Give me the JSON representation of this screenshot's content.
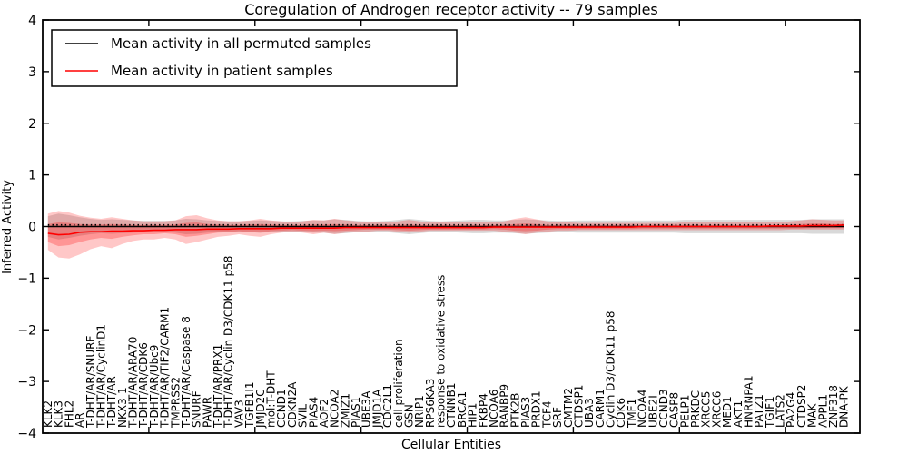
{
  "window": {
    "background": "#ffffff"
  },
  "chart_data": {
    "type": "line",
    "title": "Coregulation of Androgen receptor activity -- 79 samples",
    "xlabel": "Cellular Entities",
    "ylabel": "Inferred Activity",
    "ylim": [
      -4,
      4
    ],
    "yticks": [
      -4,
      -3,
      -2,
      -1,
      0,
      1,
      2,
      3,
      4
    ],
    "ytick_labels": [
      "−4",
      "−3",
      "−2",
      "−1",
      "0",
      "1",
      "2",
      "3",
      "4"
    ],
    "x_major_ticks": [
      10,
      20,
      30,
      40,
      50,
      60,
      70
    ],
    "grid": false,
    "legend": {
      "position": "upper left",
      "entries": [
        {
          "label": "Mean activity in all permuted samples",
          "color": "#000000"
        },
        {
          "label": "Mean activity in patient samples",
          "color": "#ff0000"
        }
      ]
    },
    "zero_line": {
      "y": 0,
      "style": "dotted",
      "color": "#000000"
    },
    "colors": {
      "permuted_line": "#000000",
      "patient_line": "#ff0000",
      "permuted_band": "#808080",
      "patient_band": "#ff0000",
      "axis": "#000000"
    },
    "categories": [
      "KLK2",
      "KLK3",
      "FHL2",
      "AR",
      "T-DHT/AR/SNURF",
      "T-DHT/AR/CyclinD1",
      "T-DHT/AR",
      "NKX3-1",
      "T-DHT/AR/ARA70",
      "T-DHT/AR/CDK6",
      "T-DHT/AR/Ubc9",
      "T-DHT/AR/TIF2/CARM1",
      "TMPRSS2",
      "T-DHT/AR/Caspase 8",
      "SNURF",
      "PAWR",
      "T-DHT/AR/PRX1",
      "T-DHT/AR/Cyclin D3/CDK11 p58",
      "VAV3",
      "TGFB1I1",
      "JMJD2C",
      "mol:T-DHT",
      "CCND1",
      "CDKN2A",
      "SVIL",
      "PIAS4",
      "AOF2",
      "NCOA2",
      "ZMIZ1",
      "PIAS1",
      "UBE3A",
      "JMJD1A",
      "CDC2L1",
      "cell proliferation",
      "GSN",
      "NRIP1",
      "RPS6KA3",
      "response to oxidative stress",
      "CTNNB1",
      "BRCA1",
      "HIP1",
      "FKBP4",
      "NCOA6",
      "RANBP9",
      "PTK2B",
      "PIAS3",
      "PRDX1",
      "TCF4",
      "SRF",
      "CMTM2",
      "CTDSP1",
      "UBA3",
      "CARM1",
      "Cyclin D3/CDK11 p58",
      "CDK6",
      "TMF1",
      "NCOA4",
      "UBE2I",
      "CCND3",
      "CASP8",
      "PELP1",
      "PRKDC",
      "XRCC5",
      "XRCC6",
      "MED1",
      "AKT1",
      "HNRNPA1",
      "PATZ1",
      "TGIF1",
      "LATS2",
      "PA2G4",
      "CTDSP2",
      "MAK",
      "APPL1",
      "ZNF318",
      "DNA-PK"
    ],
    "series": [
      {
        "name": "Mean activity in all permuted samples",
        "color": "#000000",
        "values": [
          0,
          0,
          0,
          0,
          0,
          0,
          0,
          0,
          0,
          0,
          0,
          0,
          0,
          0,
          0,
          0,
          0,
          0,
          0,
          0,
          0,
          0,
          0,
          0,
          0,
          0,
          0,
          0,
          0,
          0,
          0,
          0,
          0,
          0,
          0,
          0,
          0,
          0,
          0,
          0,
          0,
          0,
          0,
          0,
          0,
          0,
          0,
          0,
          0,
          0,
          0,
          0,
          0,
          0,
          0,
          0,
          0,
          0,
          0,
          0,
          0,
          0,
          0,
          0,
          0,
          0,
          0,
          0,
          0,
          0,
          0,
          0,
          0,
          0,
          0,
          0
        ]
      },
      {
        "name": "Mean activity in patient samples",
        "color": "#ff0000",
        "values": [
          -0.13,
          -0.16,
          -0.15,
          -0.11,
          -0.1,
          -0.1,
          -0.09,
          -0.09,
          -0.08,
          -0.08,
          -0.07,
          -0.07,
          -0.06,
          -0.06,
          -0.06,
          -0.05,
          -0.05,
          -0.05,
          -0.04,
          -0.04,
          -0.04,
          -0.04,
          -0.03,
          -0.03,
          -0.03,
          -0.03,
          -0.03,
          -0.03,
          -0.02,
          -0.02,
          -0.02,
          -0.02,
          -0.02,
          -0.02,
          -0.02,
          -0.02,
          -0.02,
          -0.02,
          -0.02,
          -0.02,
          -0.02,
          -0.02,
          -0.01,
          -0.01,
          -0.01,
          -0.01,
          -0.01,
          -0.01,
          -0.01,
          -0.01,
          -0.01,
          -0.01,
          -0.01,
          -0.01,
          -0.01,
          -0.01,
          0,
          0,
          0,
          0,
          0,
          0,
          0,
          0,
          0,
          0,
          0,
          0,
          0.01,
          0.01,
          0.01,
          0.01,
          0.02,
          0.02,
          0.02,
          0.03
        ]
      }
    ],
    "bands": [
      {
        "name": "permuted-range",
        "fill": "#808080",
        "opacity": 0.3,
        "upper": [
          0.2,
          0.25,
          0.22,
          0.18,
          0.15,
          0.13,
          0.14,
          0.13,
          0.12,
          0.11,
          0.11,
          0.11,
          0.12,
          0.15,
          0.14,
          0.12,
          0.11,
          0.1,
          0.1,
          0.11,
          0.12,
          0.11,
          0.1,
          0.1,
          0.11,
          0.12,
          0.12,
          0.14,
          0.13,
          0.11,
          0.1,
          0.1,
          0.11,
          0.13,
          0.15,
          0.13,
          0.11,
          0.1,
          0.11,
          0.12,
          0.13,
          0.13,
          0.12,
          0.12,
          0.13,
          0.14,
          0.13,
          0.12,
          0.11,
          0.11,
          0.12,
          0.12,
          0.12,
          0.12,
          0.12,
          0.12,
          0.12,
          0.12,
          0.12,
          0.12,
          0.13,
          0.13,
          0.13,
          0.13,
          0.13,
          0.13,
          0.13,
          0.13,
          0.13,
          0.13,
          0.13,
          0.13,
          0.14,
          0.14,
          0.14,
          0.14
        ],
        "lower": [
          -0.2,
          -0.25,
          -0.22,
          -0.18,
          -0.15,
          -0.13,
          -0.14,
          -0.13,
          -0.12,
          -0.11,
          -0.11,
          -0.11,
          -0.12,
          -0.15,
          -0.14,
          -0.12,
          -0.11,
          -0.1,
          -0.1,
          -0.11,
          -0.12,
          -0.11,
          -0.1,
          -0.1,
          -0.11,
          -0.12,
          -0.12,
          -0.14,
          -0.13,
          -0.11,
          -0.1,
          -0.1,
          -0.11,
          -0.13,
          -0.15,
          -0.13,
          -0.11,
          -0.1,
          -0.11,
          -0.12,
          -0.13,
          -0.13,
          -0.12,
          -0.12,
          -0.13,
          -0.14,
          -0.13,
          -0.12,
          -0.11,
          -0.11,
          -0.12,
          -0.12,
          -0.12,
          -0.12,
          -0.12,
          -0.12,
          -0.12,
          -0.12,
          -0.12,
          -0.12,
          -0.13,
          -0.13,
          -0.13,
          -0.13,
          -0.13,
          -0.13,
          -0.13,
          -0.13,
          -0.13,
          -0.13,
          -0.13,
          -0.13,
          -0.14,
          -0.14,
          -0.14,
          -0.14
        ]
      },
      {
        "name": "patient-range-outer",
        "fill": "#ff0000",
        "opacity": 0.22,
        "upper": [
          0.25,
          0.3,
          0.27,
          0.21,
          0.17,
          0.15,
          0.18,
          0.15,
          0.12,
          0.1,
          0.1,
          0.1,
          0.12,
          0.2,
          0.22,
          0.16,
          0.12,
          0.1,
          0.1,
          0.12,
          0.15,
          0.12,
          0.1,
          0.08,
          0.1,
          0.13,
          0.12,
          0.15,
          0.12,
          0.1,
          0.08,
          0.08,
          0.08,
          0.1,
          0.13,
          0.1,
          0.08,
          0.08,
          0.08,
          0.08,
          0.08,
          0.08,
          0.08,
          0.1,
          0.15,
          0.18,
          0.14,
          0.1,
          0.08,
          0.08,
          0.07,
          0.07,
          0.07,
          0.07,
          0.07,
          0.07,
          0.07,
          0.07,
          0.07,
          0.07,
          0.08,
          0.08,
          0.08,
          0.08,
          0.08,
          0.08,
          0.08,
          0.08,
          0.08,
          0.08,
          0.1,
          0.12,
          0.14,
          0.13,
          0.12,
          0.12
        ],
        "lower": [
          -0.45,
          -0.6,
          -0.62,
          -0.54,
          -0.44,
          -0.38,
          -0.42,
          -0.34,
          -0.28,
          -0.25,
          -0.25,
          -0.22,
          -0.25,
          -0.34,
          -0.3,
          -0.25,
          -0.2,
          -0.18,
          -0.15,
          -0.18,
          -0.2,
          -0.15,
          -0.12,
          -0.1,
          -0.12,
          -0.15,
          -0.12,
          -0.15,
          -0.12,
          -0.1,
          -0.1,
          -0.08,
          -0.08,
          -0.1,
          -0.12,
          -0.1,
          -0.08,
          -0.08,
          -0.08,
          -0.08,
          -0.08,
          -0.08,
          -0.08,
          -0.1,
          -0.12,
          -0.15,
          -0.12,
          -0.1,
          -0.08,
          -0.08,
          -0.07,
          -0.07,
          -0.07,
          -0.07,
          -0.07,
          -0.07,
          -0.07,
          -0.07,
          -0.07,
          -0.07,
          -0.07,
          -0.07,
          -0.07,
          -0.07,
          -0.07,
          -0.07,
          -0.07,
          -0.07,
          -0.07,
          -0.07,
          -0.06,
          -0.06,
          -0.06,
          -0.06,
          -0.06,
          -0.06
        ]
      },
      {
        "name": "patient-range-inner",
        "fill": "#ff0000",
        "opacity": 0.25,
        "upper": [
          0.05,
          0.08,
          0.07,
          0.05,
          0.04,
          0.04,
          0.05,
          0.04,
          0.03,
          0.03,
          0.03,
          0.03,
          0.04,
          0.07,
          0.08,
          0.05,
          0.04,
          0.03,
          0.03,
          0.04,
          0.05,
          0.04,
          0.03,
          0.03,
          0.03,
          0.04,
          0.04,
          0.05,
          0.04,
          0.03,
          0.03,
          0.03,
          0.03,
          0.03,
          0.04,
          0.03,
          0.03,
          0.03,
          0.03,
          0.03,
          0.03,
          0.03,
          0.03,
          0.03,
          0.05,
          0.06,
          0.05,
          0.03,
          0.03,
          0.03,
          0.03,
          0.03,
          0.03,
          0.03,
          0.03,
          0.03,
          0.03,
          0.03,
          0.03,
          0.03,
          0.03,
          0.03,
          0.03,
          0.03,
          0.03,
          0.03,
          0.03,
          0.03,
          0.03,
          0.03,
          0.04,
          0.05,
          0.06,
          0.06,
          0.05,
          0.05
        ],
        "lower": [
          -0.3,
          -0.38,
          -0.36,
          -0.3,
          -0.25,
          -0.22,
          -0.24,
          -0.2,
          -0.17,
          -0.15,
          -0.15,
          -0.13,
          -0.15,
          -0.2,
          -0.18,
          -0.15,
          -0.12,
          -0.11,
          -0.09,
          -0.11,
          -0.12,
          -0.09,
          -0.08,
          -0.07,
          -0.08,
          -0.09,
          -0.08,
          -0.09,
          -0.08,
          -0.07,
          -0.06,
          -0.06,
          -0.06,
          -0.07,
          -0.08,
          -0.07,
          -0.06,
          -0.06,
          -0.06,
          -0.06,
          -0.06,
          -0.06,
          -0.05,
          -0.06,
          -0.08,
          -0.09,
          -0.08,
          -0.06,
          -0.05,
          -0.05,
          -0.05,
          -0.05,
          -0.05,
          -0.05,
          -0.05,
          -0.05,
          -0.04,
          -0.04,
          -0.04,
          -0.04,
          -0.04,
          -0.04,
          -0.04,
          -0.04,
          -0.04,
          -0.04,
          -0.04,
          -0.04,
          -0.04,
          -0.04,
          -0.04,
          -0.04,
          -0.03,
          -0.03,
          -0.03,
          -0.03
        ]
      }
    ]
  }
}
